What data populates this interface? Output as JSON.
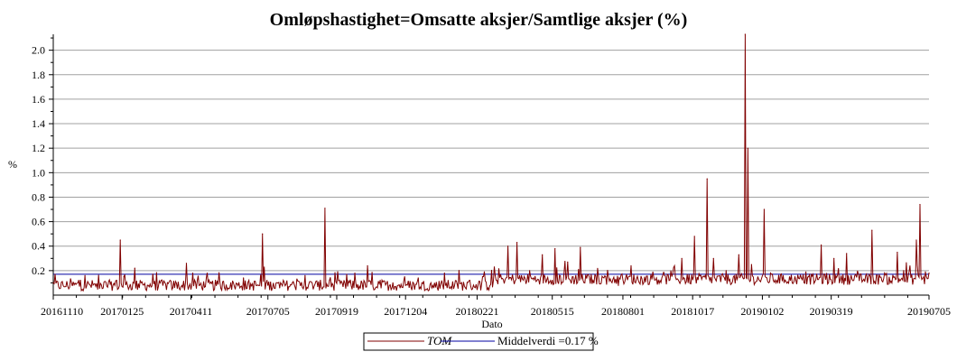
{
  "chart_data": {
    "type": "line",
    "title": "Omløpshastighet=Omsatte aksjer/Samtlige aksjer (%)",
    "xlabel": "Dato",
    "ylabel": "%",
    "ylim": [
      0,
      2.13
    ],
    "yticks": [
      0.2,
      0.4,
      0.6,
      0.8,
      1.0,
      1.2,
      1.4,
      1.6,
      1.8,
      2.0
    ],
    "ytick_labels": [
      "0.2",
      "0.4",
      "0.6",
      "0.8",
      "1.0",
      "1.2",
      "1.4",
      "1.6",
      "1.8",
      "2.0"
    ],
    "xlim": [
      "2016-11-10",
      "2019-07-05"
    ],
    "xticks": [
      "20161110",
      "20170125",
      "20170411",
      "20170705",
      "20170919",
      "20171204",
      "20180221",
      "20180515",
      "20180801",
      "20181017",
      "20190102",
      "20190319",
      "20190705"
    ],
    "grid": true,
    "legend_position": "bottom-center",
    "series": [
      {
        "name": "TOM",
        "color": "#800000",
        "points": [
          [
            "2016-11-10",
            0.1
          ],
          [
            "2016-11-24",
            0.07
          ],
          [
            "2016-12-08",
            0.12
          ],
          [
            "2016-12-15",
            0.16
          ],
          [
            "2016-12-29",
            0.05
          ],
          [
            "2017-01-12",
            0.09
          ],
          [
            "2017-01-19",
            0.12
          ],
          [
            "2017-01-23",
            0.45
          ],
          [
            "2017-01-27",
            0.15
          ],
          [
            "2017-02-08",
            0.22
          ],
          [
            "2017-02-22",
            0.08
          ],
          [
            "2017-03-08",
            0.1
          ],
          [
            "2017-03-22",
            0.06
          ],
          [
            "2017-04-06",
            0.26
          ],
          [
            "2017-04-13",
            0.18
          ],
          [
            "2017-04-27",
            0.07
          ],
          [
            "2017-05-11",
            0.09
          ],
          [
            "2017-05-25",
            0.1
          ],
          [
            "2017-06-08",
            0.14
          ],
          [
            "2017-06-22",
            0.08
          ],
          [
            "2017-06-29",
            0.5
          ],
          [
            "2017-07-04",
            0.12
          ],
          [
            "2017-07-18",
            0.06
          ],
          [
            "2017-08-01",
            0.1
          ],
          [
            "2017-08-15",
            0.16
          ],
          [
            "2017-08-29",
            0.07
          ],
          [
            "2017-09-06",
            0.71
          ],
          [
            "2017-09-11",
            0.12
          ],
          [
            "2017-09-25",
            0.1
          ],
          [
            "2017-10-09",
            0.18
          ],
          [
            "2017-10-23",
            0.24
          ],
          [
            "2017-11-06",
            0.12
          ],
          [
            "2017-11-20",
            0.1
          ],
          [
            "2017-12-04",
            0.08
          ],
          [
            "2017-12-18",
            0.14
          ],
          [
            "2018-01-02",
            0.06
          ],
          [
            "2018-01-16",
            0.18
          ],
          [
            "2018-01-30",
            0.09
          ],
          [
            "2018-02-13",
            0.12
          ],
          [
            "2018-02-27",
            0.15
          ],
          [
            "2018-03-13",
            0.16
          ],
          [
            "2018-03-27",
            0.4
          ],
          [
            "2018-04-06",
            0.43
          ],
          [
            "2018-04-20",
            0.2
          ],
          [
            "2018-05-04",
            0.33
          ],
          [
            "2018-05-18",
            0.38
          ],
          [
            "2018-06-01",
            0.27
          ],
          [
            "2018-06-15",
            0.39
          ],
          [
            "2018-06-29",
            0.12
          ],
          [
            "2018-07-13",
            0.15
          ],
          [
            "2018-07-27",
            0.08
          ],
          [
            "2018-08-10",
            0.24
          ],
          [
            "2018-08-24",
            0.1
          ],
          [
            "2018-09-07",
            0.14
          ],
          [
            "2018-09-21",
            0.12
          ],
          [
            "2018-10-05",
            0.3
          ],
          [
            "2018-10-19",
            0.48
          ],
          [
            "2018-11-02",
            0.95
          ],
          [
            "2018-11-09",
            0.3
          ],
          [
            "2018-11-23",
            0.2
          ],
          [
            "2018-12-07",
            0.33
          ],
          [
            "2018-12-14",
            2.13
          ],
          [
            "2018-12-17",
            1.2
          ],
          [
            "2018-12-21",
            0.25
          ],
          [
            "2019-01-04",
            0.7
          ],
          [
            "2019-01-11",
            0.18
          ],
          [
            "2019-01-25",
            0.16
          ],
          [
            "2019-02-08",
            0.12
          ],
          [
            "2019-02-22",
            0.15
          ],
          [
            "2019-03-08",
            0.41
          ],
          [
            "2019-03-22",
            0.3
          ],
          [
            "2019-04-05",
            0.34
          ],
          [
            "2019-04-19",
            0.12
          ],
          [
            "2019-05-03",
            0.53
          ],
          [
            "2019-05-17",
            0.18
          ],
          [
            "2019-05-31",
            0.35
          ],
          [
            "2019-06-07",
            0.2
          ],
          [
            "2019-06-21",
            0.45
          ],
          [
            "2019-06-25",
            0.74
          ],
          [
            "2019-07-01",
            0.19
          ],
          [
            "2019-07-05",
            0.18
          ]
        ]
      },
      {
        "name": "Middelverdi =0.17 %",
        "color": "#0000a0",
        "value": 0.17
      }
    ]
  }
}
